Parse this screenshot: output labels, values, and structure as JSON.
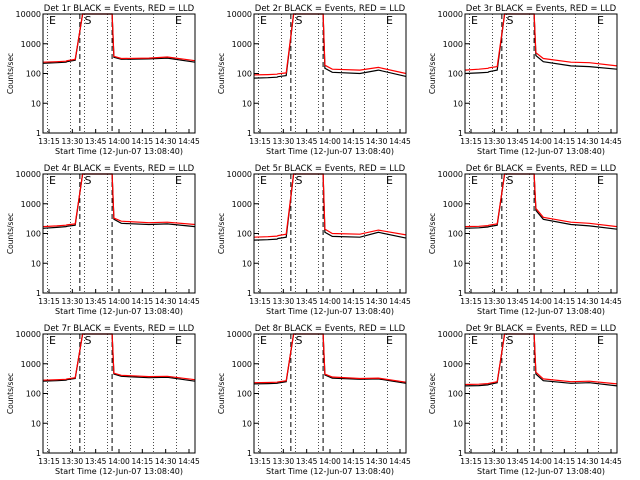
{
  "chart_data": [
    {
      "type": "line",
      "title": "Det 1r BLACK = Events, RED = LLD",
      "xlabel": "Start Time (12-Jun-07 13:08:40)",
      "ylabel": "Counts/sec",
      "yscale": "log",
      "ylim": [
        1,
        10000
      ],
      "xlim": [
        13.15,
        14.8
      ],
      "x_ticks": [
        "13:15",
        "13:30",
        "13:45",
        "14:00",
        "14:15",
        "14:30",
        "14:45"
      ],
      "grid": "vertical dotted",
      "markers": [
        "E",
        "S",
        "E"
      ],
      "series": [
        {
          "color": "#000000",
          "x": [
            13.15,
            13.3,
            13.4,
            13.41,
            13.5,
            13.58,
            13.6,
            13.9,
            13.92,
            14.0,
            14.3,
            14.5,
            14.8
          ],
          "values": [
            220,
            230,
            240,
            250,
            280,
            10000,
            10000,
            10000,
            350,
            300,
            310,
            330,
            240
          ]
        },
        {
          "color": "#ff0000",
          "x": [
            13.15,
            13.3,
            13.4,
            13.41,
            13.5,
            13.58,
            13.6,
            13.9,
            13.92,
            14.0,
            14.3,
            14.5,
            14.8
          ],
          "values": [
            240,
            250,
            260,
            270,
            300,
            10000,
            10000,
            10000,
            380,
            320,
            330,
            360,
            270
          ]
        }
      ]
    },
    {
      "type": "line",
      "title": "Det 2r BLACK = Events, RED = LLD",
      "xlabel": "Start Time (12-Jun-07 13:08:40)",
      "ylabel": "Counts/sec",
      "yscale": "log",
      "ylim": [
        1,
        10000
      ],
      "xlim": [
        13.15,
        14.8
      ],
      "x_ticks": [
        "13:15",
        "13:30",
        "13:45",
        "14:00",
        "14:15",
        "14:30",
        "14:45"
      ],
      "grid": "vertical dotted",
      "markers": [
        "E",
        "S",
        "E"
      ],
      "series": [
        {
          "color": "#000000",
          "x": [
            13.15,
            13.3,
            13.4,
            13.41,
            13.5,
            13.58,
            13.6,
            13.9,
            13.92,
            14.0,
            14.3,
            14.5,
            14.8
          ],
          "values": [
            70,
            72,
            75,
            78,
            85,
            10000,
            10000,
            10000,
            150,
            110,
            100,
            130,
            80
          ]
        },
        {
          "color": "#ff0000",
          "x": [
            13.15,
            13.3,
            13.4,
            13.41,
            13.5,
            13.58,
            13.6,
            13.9,
            13.92,
            14.0,
            14.3,
            14.5,
            14.8
          ],
          "values": [
            90,
            92,
            95,
            98,
            105,
            10000,
            10000,
            10000,
            190,
            140,
            130,
            160,
            100
          ]
        }
      ]
    },
    {
      "type": "line",
      "title": "Det 3r BLACK = Events, RED = LLD",
      "xlabel": "Start Time (12-Jun-07 13:08:40)",
      "ylabel": "Counts/sec",
      "yscale": "log",
      "ylim": [
        1,
        10000
      ],
      "xlim": [
        13.15,
        14.8
      ],
      "x_ticks": [
        "13:15",
        "13:30",
        "13:45",
        "14:00",
        "14:15",
        "14:30",
        "14:45"
      ],
      "grid": "vertical dotted",
      "markers": [
        "E",
        "S",
        "E"
      ],
      "series": [
        {
          "color": "#000000",
          "x": [
            13.15,
            13.3,
            13.4,
            13.41,
            13.5,
            13.58,
            13.6,
            13.9,
            13.92,
            14.0,
            14.3,
            14.5,
            14.8
          ],
          "values": [
            100,
            105,
            110,
            115,
            130,
            10000,
            10000,
            10000,
            400,
            250,
            180,
            170,
            140
          ]
        },
        {
          "color": "#ff0000",
          "x": [
            13.15,
            13.3,
            13.4,
            13.41,
            13.5,
            13.58,
            13.6,
            13.9,
            13.92,
            14.0,
            14.3,
            14.5,
            14.8
          ],
          "values": [
            130,
            140,
            150,
            155,
            170,
            10000,
            10000,
            10000,
            500,
            320,
            240,
            230,
            180
          ]
        }
      ]
    },
    {
      "type": "line",
      "title": "Det 4r BLACK = Events, RED = LLD",
      "xlabel": "Start Time (12-Jun-07 13:08:40)",
      "ylabel": "Counts/sec",
      "yscale": "log",
      "ylim": [
        1,
        10000
      ],
      "xlim": [
        13.15,
        14.8
      ],
      "x_ticks": [
        "13:15",
        "13:30",
        "13:45",
        "14:00",
        "14:15",
        "14:30",
        "14:45"
      ],
      "grid": "vertical dotted",
      "markers": [
        "E",
        "S",
        "E"
      ],
      "series": [
        {
          "color": "#000000",
          "x": [
            13.15,
            13.3,
            13.4,
            13.41,
            13.5,
            13.58,
            13.6,
            13.9,
            13.92,
            14.0,
            14.3,
            14.5,
            14.8
          ],
          "values": [
            150,
            160,
            170,
            175,
            190,
            10000,
            10000,
            10000,
            300,
            220,
            200,
            210,
            170
          ]
        },
        {
          "color": "#ff0000",
          "x": [
            13.15,
            13.3,
            13.4,
            13.41,
            13.5,
            13.58,
            13.6,
            13.9,
            13.92,
            14.0,
            14.3,
            14.5,
            14.8
          ],
          "values": [
            170,
            180,
            190,
            195,
            210,
            10000,
            10000,
            10000,
            330,
            260,
            230,
            240,
            200
          ]
        }
      ]
    },
    {
      "type": "line",
      "title": "Det 5r BLACK = Events, RED = LLD",
      "xlabel": "Start Time (12-Jun-07 13:08:40)",
      "ylabel": "Counts/sec",
      "yscale": "log",
      "ylim": [
        1,
        10000
      ],
      "xlim": [
        13.15,
        14.8
      ],
      "x_ticks": [
        "13:15",
        "13:30",
        "13:45",
        "14:00",
        "14:15",
        "14:30",
        "14:45"
      ],
      "grid": "vertical dotted",
      "markers": [
        "E",
        "S",
        "E"
      ],
      "series": [
        {
          "color": "#000000",
          "x": [
            13.15,
            13.3,
            13.4,
            13.41,
            13.5,
            13.58,
            13.6,
            13.9,
            13.92,
            14.0,
            14.3,
            14.5,
            14.8
          ],
          "values": [
            60,
            62,
            65,
            68,
            75,
            10000,
            10000,
            10000,
            110,
            80,
            75,
            110,
            70
          ]
        },
        {
          "color": "#ff0000",
          "x": [
            13.15,
            13.3,
            13.4,
            13.41,
            13.5,
            13.58,
            13.6,
            13.9,
            13.92,
            14.0,
            14.3,
            14.5,
            14.8
          ],
          "values": [
            75,
            78,
            82,
            85,
            95,
            10000,
            10000,
            10000,
            140,
            100,
            95,
            130,
            90
          ]
        }
      ]
    },
    {
      "type": "line",
      "title": "Det 6r BLACK = Events, RED = LLD",
      "xlabel": "Start Time (12-Jun-07 13:08:40)",
      "ylabel": "Counts/sec",
      "yscale": "log",
      "ylim": [
        1,
        10000
      ],
      "xlim": [
        13.15,
        14.8
      ],
      "x_ticks": [
        "13:15",
        "13:30",
        "13:45",
        "14:00",
        "14:15",
        "14:30",
        "14:45"
      ],
      "grid": "vertical dotted",
      "markers": [
        "E",
        "S",
        "E"
      ],
      "series": [
        {
          "color": "#000000",
          "x": [
            13.15,
            13.3,
            13.4,
            13.41,
            13.5,
            13.58,
            13.6,
            13.9,
            13.92,
            14.0,
            14.3,
            14.5,
            14.8
          ],
          "values": [
            150,
            155,
            165,
            170,
            190,
            10000,
            10000,
            10000,
            600,
            300,
            200,
            180,
            140
          ]
        },
        {
          "color": "#ff0000",
          "x": [
            13.15,
            13.3,
            13.4,
            13.41,
            13.5,
            13.58,
            13.6,
            13.9,
            13.92,
            14.0,
            14.3,
            14.5,
            14.8
          ],
          "values": [
            170,
            175,
            185,
            190,
            210,
            10000,
            10000,
            10000,
            700,
            350,
            240,
            220,
            170
          ]
        }
      ]
    },
    {
      "type": "line",
      "title": "Det 7r BLACK = Events, RED = LLD",
      "xlabel": "Start Time (12-Jun-07 13:08:40)",
      "ylabel": "Counts/sec",
      "yscale": "log",
      "ylim": [
        1,
        10000
      ],
      "xlim": [
        13.15,
        14.8
      ],
      "x_ticks": [
        "13:15",
        "13:30",
        "13:45",
        "14:00",
        "14:15",
        "14:30",
        "14:45"
      ],
      "grid": "vertical dotted",
      "markers": [
        "E",
        "S",
        "E"
      ],
      "series": [
        {
          "color": "#000000",
          "x": [
            13.15,
            13.3,
            13.4,
            13.41,
            13.5,
            13.58,
            13.6,
            13.9,
            13.92,
            14.0,
            14.3,
            14.5,
            14.8
          ],
          "values": [
            260,
            270,
            280,
            290,
            320,
            10000,
            10000,
            10000,
            450,
            380,
            340,
            350,
            260
          ]
        },
        {
          "color": "#ff0000",
          "x": [
            13.15,
            13.3,
            13.4,
            13.41,
            13.5,
            13.58,
            13.6,
            13.9,
            13.92,
            14.0,
            14.3,
            14.5,
            14.8
          ],
          "values": [
            280,
            290,
            300,
            310,
            340,
            10000,
            10000,
            10000,
            480,
            410,
            370,
            380,
            290
          ]
        }
      ]
    },
    {
      "type": "line",
      "title": "Det 8r BLACK = Events, RED = LLD",
      "xlabel": "Start Time (12-Jun-07 13:08:40)",
      "ylabel": "Counts/sec",
      "yscale": "log",
      "ylim": [
        1,
        10000
      ],
      "xlim": [
        13.15,
        14.8
      ],
      "x_ticks": [
        "13:15",
        "13:30",
        "13:45",
        "14:00",
        "14:15",
        "14:30",
        "14:45"
      ],
      "grid": "vertical dotted",
      "markers": [
        "E",
        "S",
        "E"
      ],
      "series": [
        {
          "color": "#000000",
          "x": [
            13.15,
            13.3,
            13.4,
            13.41,
            13.5,
            13.58,
            13.6,
            13.9,
            13.92,
            14.0,
            14.3,
            14.5,
            14.8
          ],
          "values": [
            210,
            215,
            220,
            225,
            250,
            10000,
            10000,
            10000,
            420,
            330,
            300,
            310,
            220
          ]
        },
        {
          "color": "#ff0000",
          "x": [
            13.15,
            13.3,
            13.4,
            13.41,
            13.5,
            13.58,
            13.6,
            13.9,
            13.92,
            14.0,
            14.3,
            14.5,
            14.8
          ],
          "values": [
            230,
            235,
            240,
            245,
            270,
            10000,
            10000,
            10000,
            450,
            360,
            320,
            330,
            240
          ]
        }
      ]
    },
    {
      "type": "line",
      "title": "Det 9r BLACK = Events, RED = LLD",
      "xlabel": "Start Time (12-Jun-07 13:08:40)",
      "ylabel": "Counts/sec",
      "yscale": "log",
      "ylim": [
        1,
        10000
      ],
      "xlim": [
        13.15,
        14.8
      ],
      "x_ticks": [
        "13:15",
        "13:30",
        "13:45",
        "14:00",
        "14:15",
        "14:30",
        "14:45"
      ],
      "grid": "vertical dotted",
      "markers": [
        "E",
        "S",
        "E"
      ],
      "series": [
        {
          "color": "#000000",
          "x": [
            13.15,
            13.3,
            13.4,
            13.41,
            13.5,
            13.58,
            13.6,
            13.9,
            13.92,
            14.0,
            14.3,
            14.5,
            14.8
          ],
          "values": [
            180,
            185,
            195,
            200,
            230,
            10000,
            10000,
            10000,
            450,
            270,
            220,
            230,
            180
          ]
        },
        {
          "color": "#ff0000",
          "x": [
            13.15,
            13.3,
            13.4,
            13.41,
            13.5,
            13.58,
            13.6,
            13.9,
            13.92,
            14.0,
            14.3,
            14.5,
            14.8
          ],
          "values": [
            200,
            205,
            215,
            220,
            250,
            10000,
            10000,
            10000,
            520,
            310,
            250,
            260,
            210
          ]
        }
      ]
    }
  ]
}
